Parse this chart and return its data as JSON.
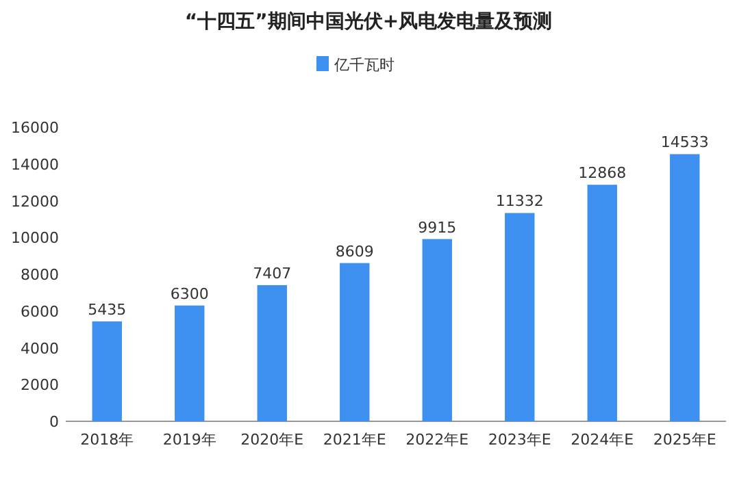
{
  "chart_data": {
    "type": "bar",
    "title": "“十四五”期间中国光伏+风电发电量及预测",
    "categories": [
      "2018年",
      "2019年",
      "2020年E",
      "2021年E",
      "2022年E",
      "2023年E",
      "2024年E",
      "2025年E"
    ],
    "series": [
      {
        "name": "亿千瓦时",
        "color": "#3d8ff0",
        "values": [
          5435,
          6300,
          7407,
          8609,
          9915,
          11332,
          12868,
          14533
        ]
      }
    ],
    "ylim": [
      0,
      16000
    ],
    "yticks": [
      0,
      2000,
      4000,
      6000,
      8000,
      10000,
      12000,
      14000,
      16000
    ],
    "data_labels": true,
    "legend": "top",
    "grid": false
  }
}
